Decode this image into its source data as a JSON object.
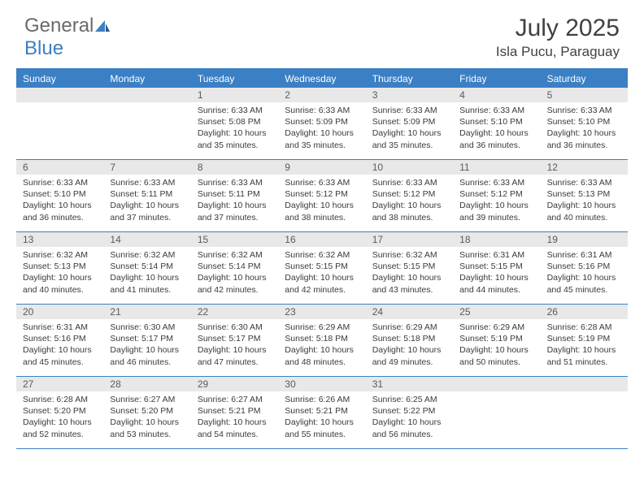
{
  "logo": {
    "part1": "General",
    "part2": "Blue"
  },
  "title": "July 2025",
  "location": "Isla Pucu, Paraguay",
  "colors": {
    "accent": "#3b7fc4",
    "header_text": "#ffffff",
    "daynum_bg": "#e8e8e8",
    "body_text": "#3a3a3a",
    "title_text": "#414141",
    "logo_gray": "#6a6a6a"
  },
  "day_names": [
    "Sunday",
    "Monday",
    "Tuesday",
    "Wednesday",
    "Thursday",
    "Friday",
    "Saturday"
  ],
  "weeks": [
    [
      {
        "n": "",
        "sr": "",
        "ss": "",
        "dl": ""
      },
      {
        "n": "",
        "sr": "",
        "ss": "",
        "dl": ""
      },
      {
        "n": "1",
        "sr": "6:33 AM",
        "ss": "5:08 PM",
        "dl": "10 hours and 35 minutes."
      },
      {
        "n": "2",
        "sr": "6:33 AM",
        "ss": "5:09 PM",
        "dl": "10 hours and 35 minutes."
      },
      {
        "n": "3",
        "sr": "6:33 AM",
        "ss": "5:09 PM",
        "dl": "10 hours and 35 minutes."
      },
      {
        "n": "4",
        "sr": "6:33 AM",
        "ss": "5:10 PM",
        "dl": "10 hours and 36 minutes."
      },
      {
        "n": "5",
        "sr": "6:33 AM",
        "ss": "5:10 PM",
        "dl": "10 hours and 36 minutes."
      }
    ],
    [
      {
        "n": "6",
        "sr": "6:33 AM",
        "ss": "5:10 PM",
        "dl": "10 hours and 36 minutes."
      },
      {
        "n": "7",
        "sr": "6:33 AM",
        "ss": "5:11 PM",
        "dl": "10 hours and 37 minutes."
      },
      {
        "n": "8",
        "sr": "6:33 AM",
        "ss": "5:11 PM",
        "dl": "10 hours and 37 minutes."
      },
      {
        "n": "9",
        "sr": "6:33 AM",
        "ss": "5:12 PM",
        "dl": "10 hours and 38 minutes."
      },
      {
        "n": "10",
        "sr": "6:33 AM",
        "ss": "5:12 PM",
        "dl": "10 hours and 38 minutes."
      },
      {
        "n": "11",
        "sr": "6:33 AM",
        "ss": "5:12 PM",
        "dl": "10 hours and 39 minutes."
      },
      {
        "n": "12",
        "sr": "6:33 AM",
        "ss": "5:13 PM",
        "dl": "10 hours and 40 minutes."
      }
    ],
    [
      {
        "n": "13",
        "sr": "6:32 AM",
        "ss": "5:13 PM",
        "dl": "10 hours and 40 minutes."
      },
      {
        "n": "14",
        "sr": "6:32 AM",
        "ss": "5:14 PM",
        "dl": "10 hours and 41 minutes."
      },
      {
        "n": "15",
        "sr": "6:32 AM",
        "ss": "5:14 PM",
        "dl": "10 hours and 42 minutes."
      },
      {
        "n": "16",
        "sr": "6:32 AM",
        "ss": "5:15 PM",
        "dl": "10 hours and 42 minutes."
      },
      {
        "n": "17",
        "sr": "6:32 AM",
        "ss": "5:15 PM",
        "dl": "10 hours and 43 minutes."
      },
      {
        "n": "18",
        "sr": "6:31 AM",
        "ss": "5:15 PM",
        "dl": "10 hours and 44 minutes."
      },
      {
        "n": "19",
        "sr": "6:31 AM",
        "ss": "5:16 PM",
        "dl": "10 hours and 45 minutes."
      }
    ],
    [
      {
        "n": "20",
        "sr": "6:31 AM",
        "ss": "5:16 PM",
        "dl": "10 hours and 45 minutes."
      },
      {
        "n": "21",
        "sr": "6:30 AM",
        "ss": "5:17 PM",
        "dl": "10 hours and 46 minutes."
      },
      {
        "n": "22",
        "sr": "6:30 AM",
        "ss": "5:17 PM",
        "dl": "10 hours and 47 minutes."
      },
      {
        "n": "23",
        "sr": "6:29 AM",
        "ss": "5:18 PM",
        "dl": "10 hours and 48 minutes."
      },
      {
        "n": "24",
        "sr": "6:29 AM",
        "ss": "5:18 PM",
        "dl": "10 hours and 49 minutes."
      },
      {
        "n": "25",
        "sr": "6:29 AM",
        "ss": "5:19 PM",
        "dl": "10 hours and 50 minutes."
      },
      {
        "n": "26",
        "sr": "6:28 AM",
        "ss": "5:19 PM",
        "dl": "10 hours and 51 minutes."
      }
    ],
    [
      {
        "n": "27",
        "sr": "6:28 AM",
        "ss": "5:20 PM",
        "dl": "10 hours and 52 minutes."
      },
      {
        "n": "28",
        "sr": "6:27 AM",
        "ss": "5:20 PM",
        "dl": "10 hours and 53 minutes."
      },
      {
        "n": "29",
        "sr": "6:27 AM",
        "ss": "5:21 PM",
        "dl": "10 hours and 54 minutes."
      },
      {
        "n": "30",
        "sr": "6:26 AM",
        "ss": "5:21 PM",
        "dl": "10 hours and 55 minutes."
      },
      {
        "n": "31",
        "sr": "6:25 AM",
        "ss": "5:22 PM",
        "dl": "10 hours and 56 minutes."
      },
      {
        "n": "",
        "sr": "",
        "ss": "",
        "dl": ""
      },
      {
        "n": "",
        "sr": "",
        "ss": "",
        "dl": ""
      }
    ]
  ],
  "labels": {
    "sunrise": "Sunrise: ",
    "sunset": "Sunset: ",
    "daylight": "Daylight: "
  }
}
